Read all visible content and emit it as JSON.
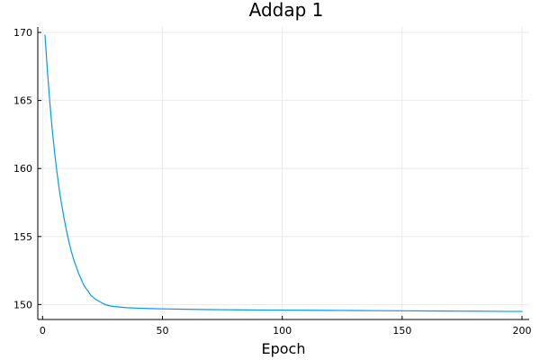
{
  "chart_data": {
    "type": "line",
    "title": "Addap 1",
    "xlabel": "Epoch",
    "ylabel": "",
    "xlim": [
      -2,
      203
    ],
    "ylim": [
      148.9,
      170.4
    ],
    "xticks": [
      0,
      50,
      100,
      150,
      200
    ],
    "yticks": [
      150,
      155,
      160,
      165,
      170
    ],
    "grid": true,
    "legend": "none",
    "series": [
      {
        "color": "#009AFA",
        "x": [
          1,
          2,
          3,
          4,
          5,
          6,
          7,
          8,
          9,
          10,
          11,
          12,
          13,
          14,
          15,
          16,
          17,
          18,
          19,
          20,
          22,
          24,
          26,
          28,
          30,
          35,
          40,
          45,
          50,
          60,
          70,
          80,
          90,
          100,
          110,
          120,
          130,
          140,
          150,
          160,
          170,
          180,
          190,
          200
        ],
        "y": [
          169.8,
          167.2,
          164.9,
          162.9,
          161.2,
          159.7,
          158.4,
          157.3,
          156.3,
          155.4,
          154.6,
          153.9,
          153.3,
          152.8,
          152.3,
          151.9,
          151.5,
          151.2,
          151.0,
          150.7,
          150.4,
          150.2,
          150.0,
          149.9,
          149.85,
          149.77,
          149.73,
          149.7,
          149.68,
          149.65,
          149.63,
          149.61,
          149.6,
          149.59,
          149.58,
          149.57,
          149.56,
          149.55,
          149.54,
          149.53,
          149.52,
          149.51,
          149.5,
          149.49
        ]
      }
    ]
  }
}
